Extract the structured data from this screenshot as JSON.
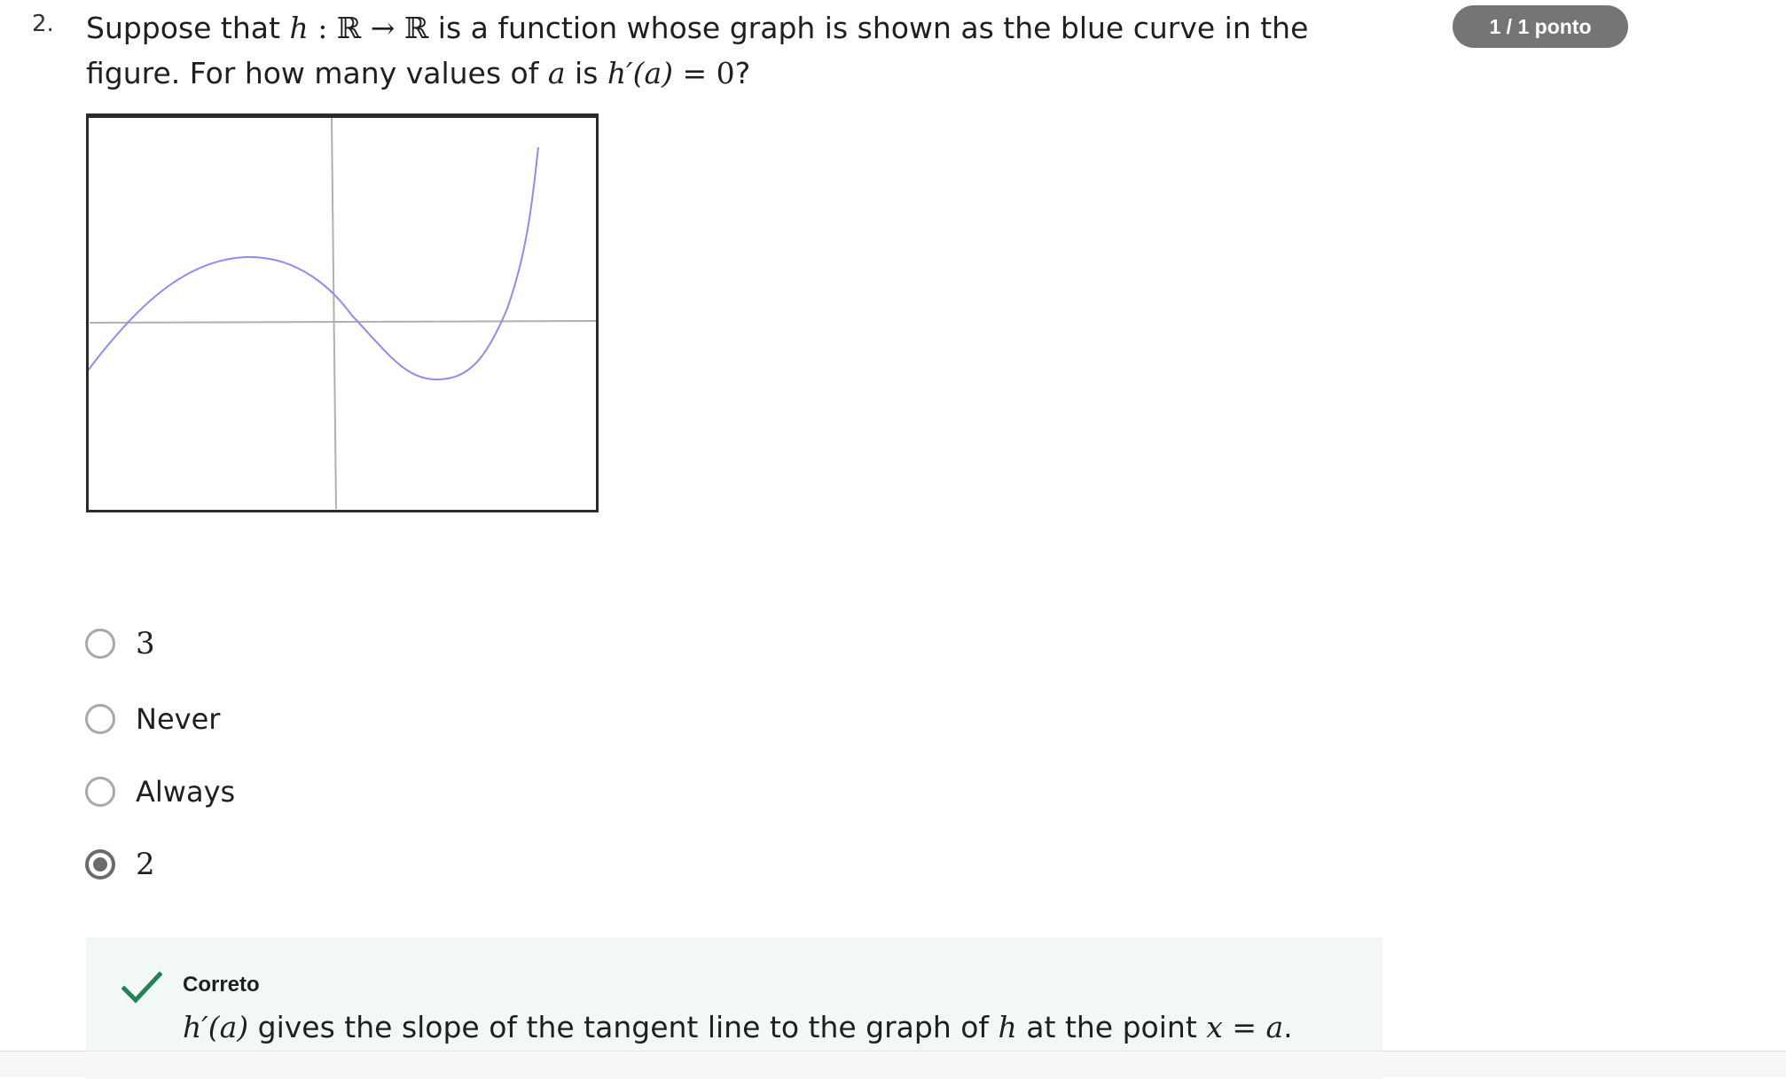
{
  "question": {
    "number": "2.",
    "text_part1": "Suppose that ",
    "math_h": "h",
    "math_map": " : ℝ → ℝ ",
    "text_part2": "is a function whose graph is shown as the blue curve in the figure. For how many values of ",
    "math_a": "a",
    "text_part3": " is ",
    "math_deriv": "h′(a)",
    "math_eq": " = 0",
    "text_end": "?"
  },
  "score": {
    "label": "1 / 1 ponto"
  },
  "figure": {
    "curve_color": "#8c8cf5",
    "axis_color": "#b0b0b0",
    "frame_color": "#2b2b2b"
  },
  "options": [
    {
      "label": "3",
      "selected": false
    },
    {
      "label": "Never",
      "selected": false
    },
    {
      "label": "Always",
      "selected": false
    },
    {
      "label": "2",
      "selected": true
    }
  ],
  "feedback": {
    "status": "Correto",
    "status_color": "#1f8354",
    "explanation_math1": "h′(a)",
    "explanation_text1": " gives the slope of the tangent line to the graph of ",
    "explanation_math2": "h",
    "explanation_text2": " at the point ",
    "explanation_math3": "x = a",
    "explanation_end": "."
  }
}
